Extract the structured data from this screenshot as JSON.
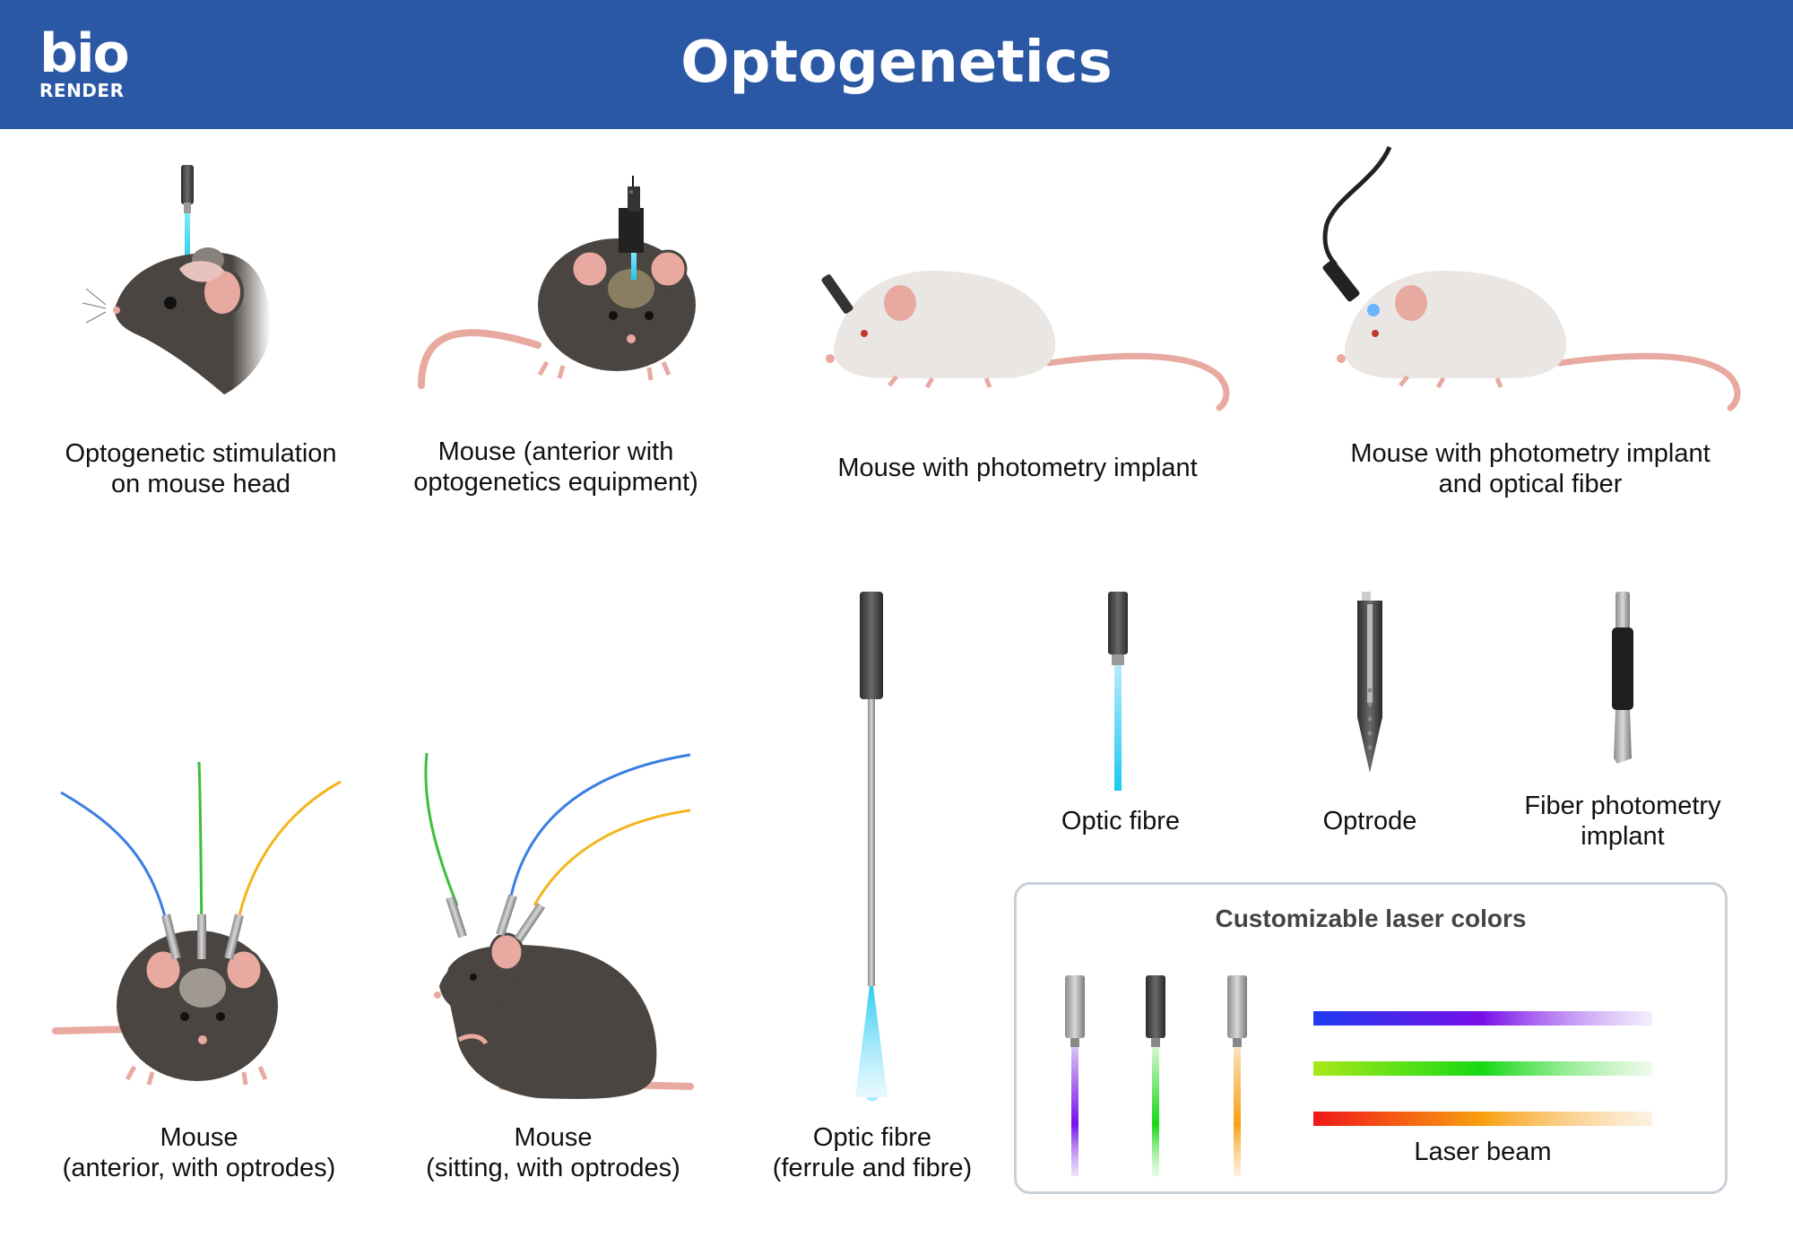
{
  "header": {
    "logo_top": "bio",
    "logo_bottom": "RENDER",
    "title": "Optogenetics",
    "background_color": "#2b58a4"
  },
  "panels": {
    "stim_head": {
      "line1": "Optogenetic stimulation",
      "line2": "on mouse head"
    },
    "anterior_equipment": {
      "line1": "Mouse (anterior with",
      "line2": "optogenetics equipment)"
    },
    "photometry_implant": {
      "line1": "Mouse with photometry implant"
    },
    "photometry_fiber": {
      "line1": "Mouse with photometry implant",
      "line2": "and optical fiber"
    },
    "anterior_optrodes": {
      "line1": "Mouse",
      "line2": "(anterior, with optrodes)"
    },
    "sitting_optrodes": {
      "line1": "Mouse",
      "line2": "(sitting, with optrodes)"
    },
    "ferrule_fibre": {
      "line1": "Optic fibre",
      "line2": "(ferrule and fibre)"
    },
    "optic_fibre": {
      "line1": "Optic fibre"
    },
    "optrode": {
      "line1": "Optrode"
    },
    "fiber_photometry_implant": {
      "line1": "Fiber photometry",
      "line2": "implant"
    }
  },
  "laser_box": {
    "title": "Customizable laser colors",
    "beam_label": "Laser beam",
    "beams": [
      {
        "name": "blue-violet",
        "colors": [
          "#1f3cf0",
          "#7a10e8",
          "#d6c4f6"
        ]
      },
      {
        "name": "green",
        "colors": [
          "#a8e81a",
          "#16d816",
          "#d6f6d2"
        ]
      },
      {
        "name": "red-orange",
        "colors": [
          "#f01818",
          "#f8a010",
          "#fae2c0"
        ]
      }
    ]
  },
  "colors": {
    "beam_blue": "#2ad1f0",
    "fiber_blue": "#3b7fe3",
    "fiber_green": "#3bbf3b",
    "fiber_yellow": "#f2b61c",
    "mouse_dark": "#4a4541",
    "mouse_white": "#e9e6e3",
    "mouse_pink": "#e8a9a0"
  }
}
